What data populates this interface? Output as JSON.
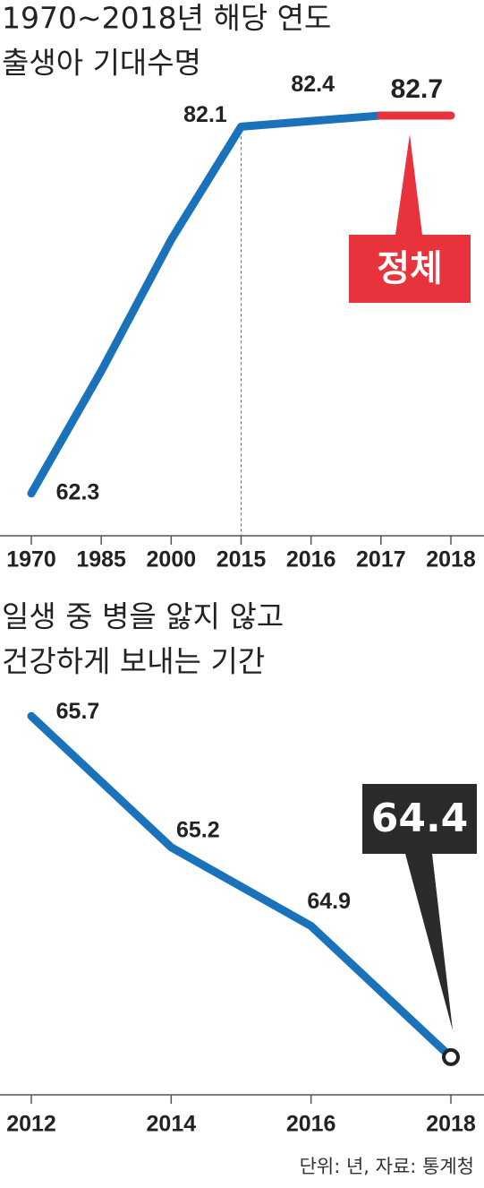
{
  "chart_data": [
    {
      "type": "line",
      "title_lines": [
        "1970~2018년 해당 연도",
        "출생아 기대수명"
      ],
      "categories": [
        "1970",
        "1985",
        "2000",
        "2015",
        "2016",
        "2017",
        "2018"
      ],
      "series": [
        {
          "color": "#1a72bb",
          "values": [
            62.3,
            68.9,
            76.0,
            82.1,
            82.4,
            82.7,
            null
          ],
          "value_labels": [
            "62.3",
            null,
            null,
            "82.1",
            "82.4",
            null,
            null
          ]
        },
        {
          "color": "#e8333c",
          "values": [
            null,
            null,
            null,
            null,
            null,
            82.7,
            82.7
          ],
          "value_labels": [
            null,
            null,
            null,
            null,
            null,
            "82.7",
            null
          ]
        }
      ],
      "ylim": [
        60.4,
        84.1
      ],
      "annotation": {
        "text": "정체",
        "color": "#e8333c"
      }
    },
    {
      "type": "line",
      "title_lines": [
        "일생 중 병을 앓지 않고",
        "건강하게 보내는 기간"
      ],
      "categories": [
        "2012",
        "2014",
        "2016",
        "2018"
      ],
      "series": [
        {
          "color": "#1a72bb",
          "values": [
            65.7,
            65.2,
            64.9,
            64.4
          ],
          "value_labels": [
            "65.7",
            "65.2",
            "64.9",
            null
          ]
        }
      ],
      "ylim": [
        64.27,
        65.8
      ],
      "annotation": {
        "text": "64.4",
        "color": "#2b2b2b"
      }
    }
  ],
  "source": "단위: 년, 자료: 통계청"
}
